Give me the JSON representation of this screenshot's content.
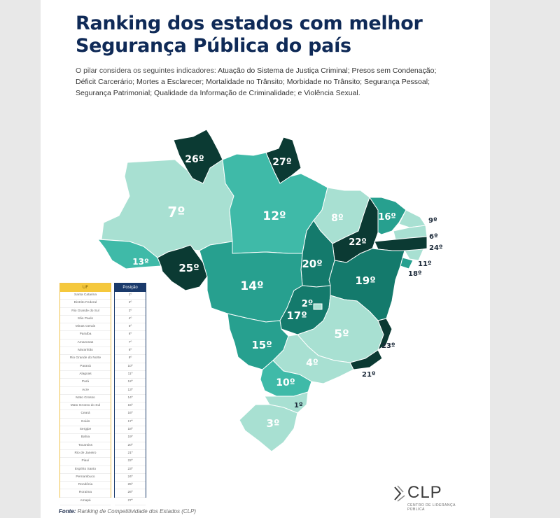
{
  "title_line1": "Ranking dos estados com melhor",
  "title_line2": "Segurança Pública do país",
  "subtitle_intro": "O pilar considera os seguintes indicadores:",
  "subtitle_indicators": "Atuação do Sistema de Justiça Criminal; Presos sem Condenação; Déficit Carcerário; Mortes a Esclarecer; Mortalidade no Trânsito; Morbidade no Trânsito; Segurança Pessoal; Segurança Patrimonial; Qualidade da Informação de Criminalidade; e Violência Sexual.",
  "colors": {
    "title": "#0f2a57",
    "tier_light": "#a8e0d2",
    "tier_mid": "#3fbaa8",
    "tier_teal": "#27a08f",
    "tier_dark": "#147a6c",
    "tier_darkest": "#0b3a33"
  },
  "states": [
    {
      "uf": "RR",
      "rank": "26º",
      "tier": "darkest"
    },
    {
      "uf": "AP",
      "rank": "27º",
      "tier": "darkest"
    },
    {
      "uf": "AM",
      "rank": "7º",
      "tier": "light"
    },
    {
      "uf": "PA",
      "rank": "12º",
      "tier": "mid"
    },
    {
      "uf": "MA",
      "rank": "8º",
      "tier": "light"
    },
    {
      "uf": "CE",
      "rank": "16º",
      "tier": "teal"
    },
    {
      "uf": "RN",
      "rank": "9º",
      "tier": "light"
    },
    {
      "uf": "PB",
      "rank": "6º",
      "tier": "light"
    },
    {
      "uf": "PE",
      "rank": "24º",
      "tier": "darkest"
    },
    {
      "uf": "AL",
      "rank": "11º",
      "tier": "light"
    },
    {
      "uf": "SE",
      "rank": "18º",
      "tier": "teal"
    },
    {
      "uf": "PI",
      "rank": "22º",
      "tier": "darkest"
    },
    {
      "uf": "AC",
      "rank": "13º",
      "tier": "mid"
    },
    {
      "uf": "RO",
      "rank": "25º",
      "tier": "darkest"
    },
    {
      "uf": "TO",
      "rank": "20º",
      "tier": "dark"
    },
    {
      "uf": "BA",
      "rank": "19º",
      "tier": "dark"
    },
    {
      "uf": "MT",
      "rank": "14º",
      "tier": "teal"
    },
    {
      "uf": "DF",
      "rank": "2º",
      "tier": "light"
    },
    {
      "uf": "GO",
      "rank": "17º",
      "tier": "dark"
    },
    {
      "uf": "MG",
      "rank": "5º",
      "tier": "light"
    },
    {
      "uf": "ES",
      "rank": "23º",
      "tier": "darkest"
    },
    {
      "uf": "MS",
      "rank": "15º",
      "tier": "teal"
    },
    {
      "uf": "SP",
      "rank": "4º",
      "tier": "light"
    },
    {
      "uf": "RJ",
      "rank": "21º",
      "tier": "darkest"
    },
    {
      "uf": "PR",
      "rank": "10º",
      "tier": "mid"
    },
    {
      "uf": "SC",
      "rank": "1º",
      "tier": "light"
    },
    {
      "uf": "RS",
      "rank": "3º",
      "tier": "light"
    }
  ],
  "table": {
    "header_uf": "UF",
    "header_pos": "Posição",
    "rows": [
      {
        "uf": "Santa Catarina",
        "pos": "1º"
      },
      {
        "uf": "Distrito Federal",
        "pos": "2º"
      },
      {
        "uf": "Rio Grande do Sul",
        "pos": "3º"
      },
      {
        "uf": "São Paulo",
        "pos": "4º"
      },
      {
        "uf": "Minas Gerais",
        "pos": "5º"
      },
      {
        "uf": "Paraíba",
        "pos": "6º"
      },
      {
        "uf": "Amazonas",
        "pos": "7º"
      },
      {
        "uf": "Maranhão",
        "pos": "8º"
      },
      {
        "uf": "Rio Grande do Norte",
        "pos": "9º"
      },
      {
        "uf": "Paraná",
        "pos": "10º"
      },
      {
        "uf": "Alagoas",
        "pos": "11º"
      },
      {
        "uf": "Pará",
        "pos": "12º"
      },
      {
        "uf": "Acre",
        "pos": "13º"
      },
      {
        "uf": "Mato Grosso",
        "pos": "14º"
      },
      {
        "uf": "Mato Grosso do Sul",
        "pos": "15º"
      },
      {
        "uf": "Ceará",
        "pos": "16º"
      },
      {
        "uf": "Goiás",
        "pos": "17º"
      },
      {
        "uf": "Sergipe",
        "pos": "18º"
      },
      {
        "uf": "Bahia",
        "pos": "19º"
      },
      {
        "uf": "Tocantins",
        "pos": "20º"
      },
      {
        "uf": "Rio de Janeiro",
        "pos": "21º"
      },
      {
        "uf": "Piauí",
        "pos": "22º"
      },
      {
        "uf": "Espírito Santo",
        "pos": "23º"
      },
      {
        "uf": "Pernambuco",
        "pos": "24º"
      },
      {
        "uf": "Rondônia",
        "pos": "25º"
      },
      {
        "uf": "Roraima",
        "pos": "26º"
      },
      {
        "uf": "Amapá",
        "pos": "27º"
      }
    ]
  },
  "source_label": "Fonte:",
  "source_text": "Ranking de Competitividade dos Estados (CLP)",
  "logo": {
    "text": "CLP",
    "subtext": "CENTRO DE LIDERANÇA PÚBLICA"
  }
}
